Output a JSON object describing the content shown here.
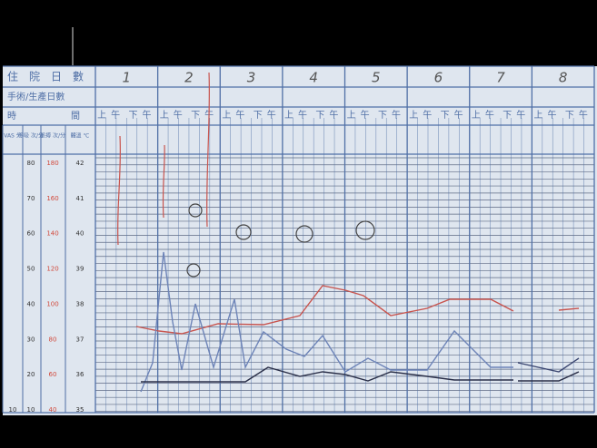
{
  "header": {
    "rows": [
      "住院日數",
      "手術/生產日數",
      "時間"
    ]
  },
  "days": [
    "1",
    "2",
    "3",
    "4",
    "5",
    "6",
    "7",
    "8"
  ],
  "half_day": [
    "上午",
    "下午"
  ],
  "scale": {
    "headers": [
      "VAS 分",
      "呼吸 次/分",
      "脈搏 次/分",
      "體溫 ℃"
    ],
    "vas": [
      10
    ],
    "respiration": [
      80,
      70,
      60,
      50,
      40,
      30,
      20,
      10
    ],
    "pulse": [
      180,
      160,
      140,
      120,
      100,
      80,
      60,
      40
    ],
    "temperature": [
      42,
      41,
      40,
      39,
      38,
      37,
      36,
      35
    ]
  }
}
